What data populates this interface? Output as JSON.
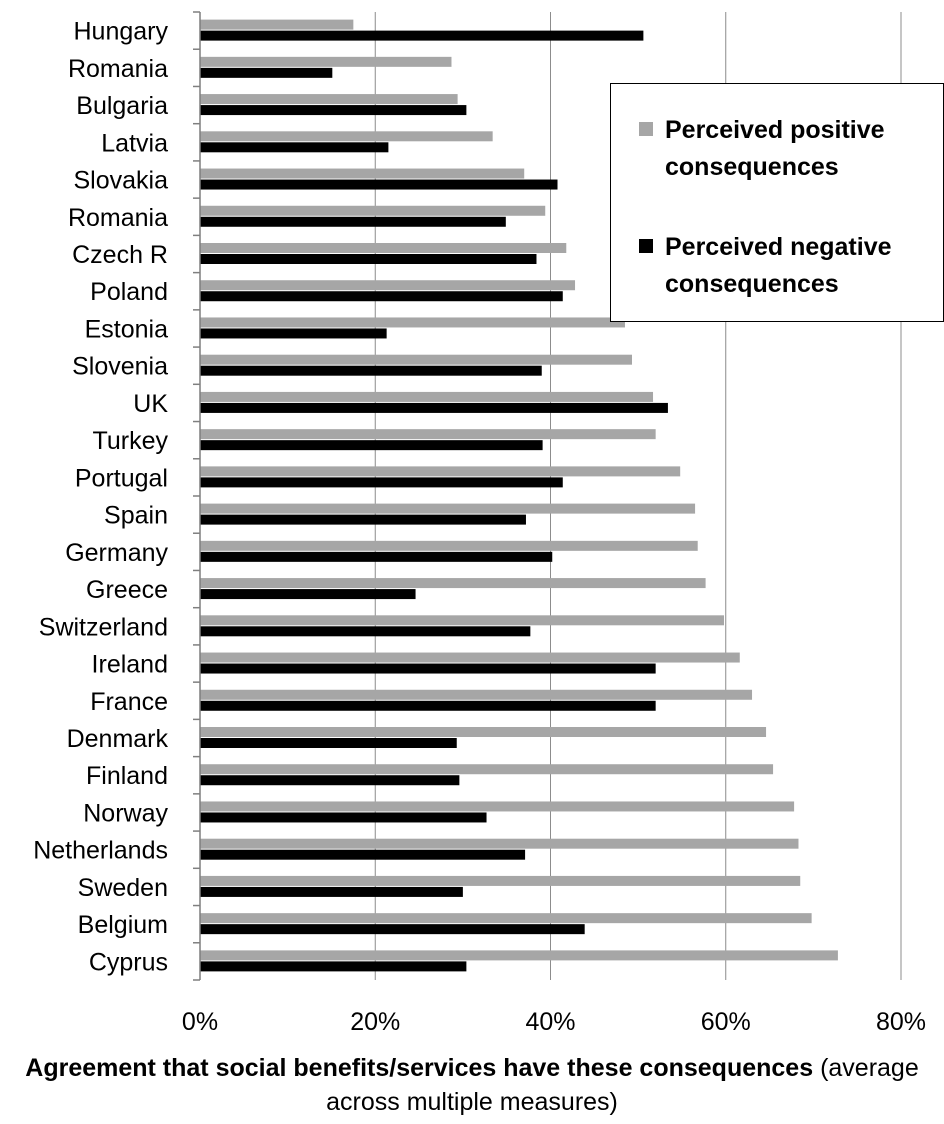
{
  "chart_data": {
    "type": "bar",
    "orientation": "horizontal",
    "categories": [
      "Hungary",
      "Romania",
      "Bulgaria",
      "Latvia",
      "Slovakia",
      "Romania",
      "Czech R",
      "Poland",
      "Estonia",
      "Slovenia",
      "UK",
      "Turkey",
      "Portugal",
      "Spain",
      "Germany",
      "Greece",
      "Switzerland",
      "Ireland",
      "France",
      "Denmark",
      "Finland",
      "Norway",
      "Netherlands",
      "Sweden",
      "Belgium",
      "Cyprus"
    ],
    "series": [
      {
        "name": "Perceived positive consequences",
        "color": "#a6a6a6",
        "values": [
          17.5,
          28.7,
          29.4,
          33.4,
          37.0,
          39.4,
          41.8,
          42.8,
          48.5,
          49.3,
          51.7,
          52.0,
          54.8,
          56.5,
          56.8,
          57.7,
          59.8,
          61.6,
          63.0,
          64.6,
          65.4,
          67.8,
          68.3,
          68.5,
          69.8,
          72.8
        ]
      },
      {
        "name": "Perceived negative consequences",
        "color": "#000000",
        "values": [
          50.6,
          15.1,
          30.4,
          21.5,
          40.8,
          34.9,
          38.4,
          41.4,
          21.3,
          39.0,
          53.4,
          39.1,
          41.4,
          37.2,
          40.2,
          24.6,
          37.7,
          52.0,
          52.0,
          29.3,
          29.6,
          32.7,
          37.1,
          30.0,
          43.9,
          30.4
        ]
      }
    ],
    "x_ticks": [
      "0%",
      "20%",
      "40%",
      "60%",
      "80%"
    ],
    "xlim": [
      0,
      80
    ],
    "xlabel_bold": "Agreement that social benefits/services have these consequences",
    "xlabel_normal": "(average across multiple measures)",
    "grid": "vertical",
    "legend_position": "top-right"
  },
  "colors": {
    "positive": "#a6a6a6",
    "negative": "#000000",
    "grid": "#8c8c8c",
    "text": "#000000"
  }
}
